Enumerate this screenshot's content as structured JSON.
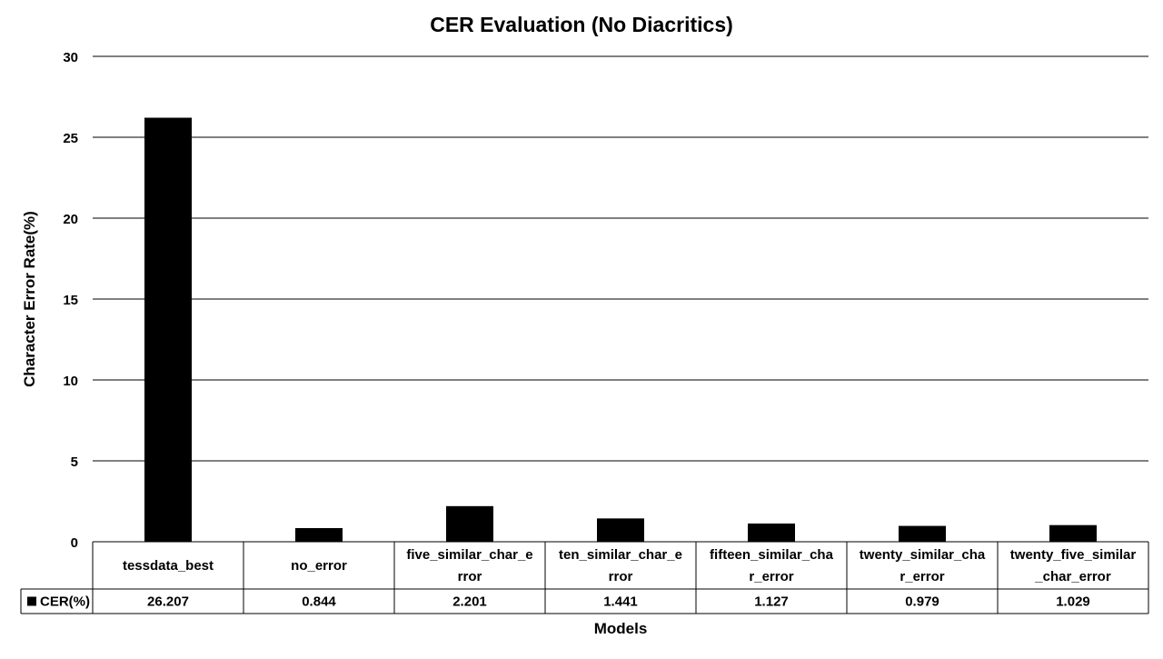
{
  "chart_data": {
    "type": "bar",
    "title": "CER Evaluation (No Diacritics)",
    "xlabel": "Models",
    "ylabel": "Character Error Rate(%)",
    "ylim": [
      0,
      30
    ],
    "yticks": [
      "0",
      "5",
      "10",
      "15",
      "20",
      "25",
      "30"
    ],
    "grid": true,
    "legend_position": "data-table",
    "categories": [
      [
        "tessdata_best"
      ],
      [
        "no_error"
      ],
      [
        "five_similar_char_e",
        "rror"
      ],
      [
        "ten_similar_char_e",
        "rror"
      ],
      [
        "fifteen_similar_cha",
        "r_error"
      ],
      [
        "twenty_similar_cha",
        "r_error"
      ],
      [
        "twenty_five_similar",
        "_char_error"
      ]
    ],
    "series": [
      {
        "name": "CER(%)",
        "color": "#000000",
        "values": [
          26.207,
          0.844,
          2.201,
          1.441,
          1.127,
          0.979,
          1.029
        ],
        "labels": [
          "26.207",
          "0.844",
          "2.201",
          "1.441",
          "1.127",
          "0.979",
          "1.029"
        ]
      }
    ]
  }
}
